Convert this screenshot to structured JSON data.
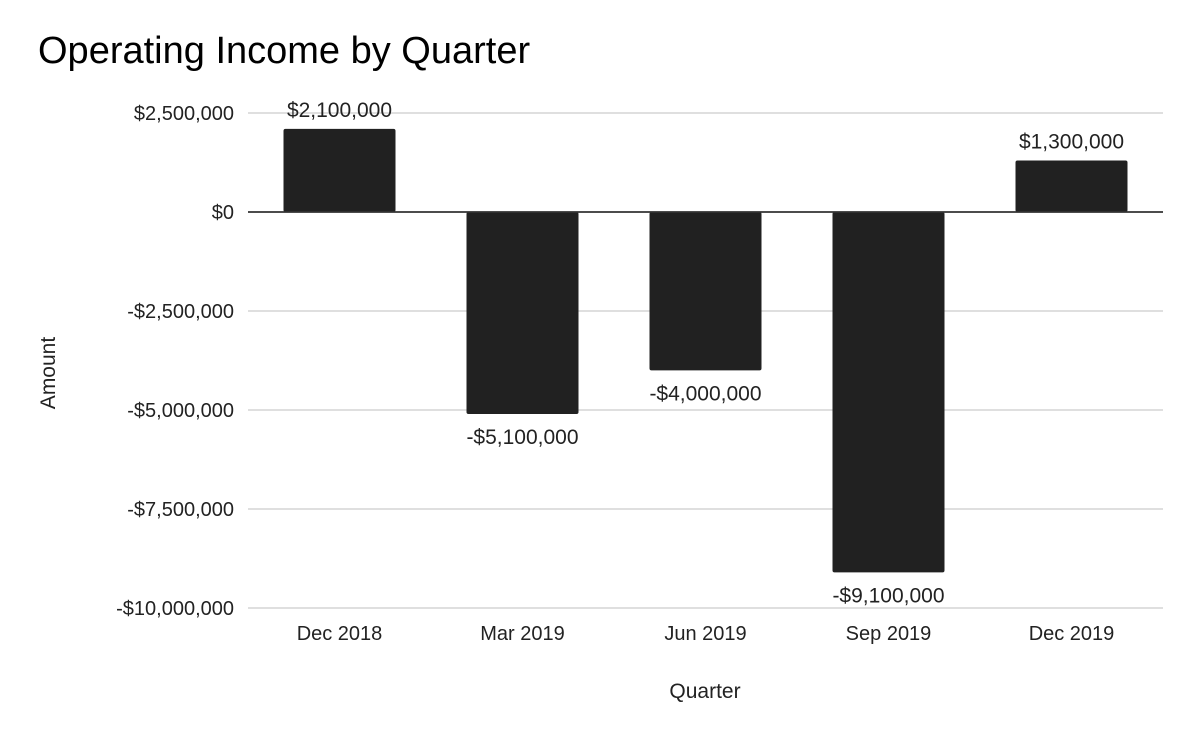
{
  "chart_data": {
    "type": "bar",
    "title": "Operating Income by Quarter",
    "xlabel": "Quarter",
    "ylabel": "Amount",
    "categories": [
      "Dec 2018",
      "Mar 2019",
      "Jun 2019",
      "Sep 2019",
      "Dec 2019"
    ],
    "values": [
      2100000,
      -5100000,
      -4000000,
      -9100000,
      1300000
    ],
    "data_labels": [
      "$2,100,000",
      "-$5,100,000",
      "-$4,000,000",
      "-$9,100,000",
      "$1,300,000"
    ],
    "ylim": [
      -10000000,
      2500000
    ],
    "yticks": [
      2500000,
      0,
      -2500000,
      -5000000,
      -7500000,
      -10000000
    ],
    "ytick_labels": [
      "$2,500,000",
      "$0",
      "-$2,500,000",
      "-$5,000,000",
      "-$7,500,000",
      "-$10,000,000"
    ],
    "grid": true,
    "legend": "none",
    "colors": {
      "bar": "#212121",
      "grid": "#cccccc",
      "zero_line": "#333333"
    }
  }
}
